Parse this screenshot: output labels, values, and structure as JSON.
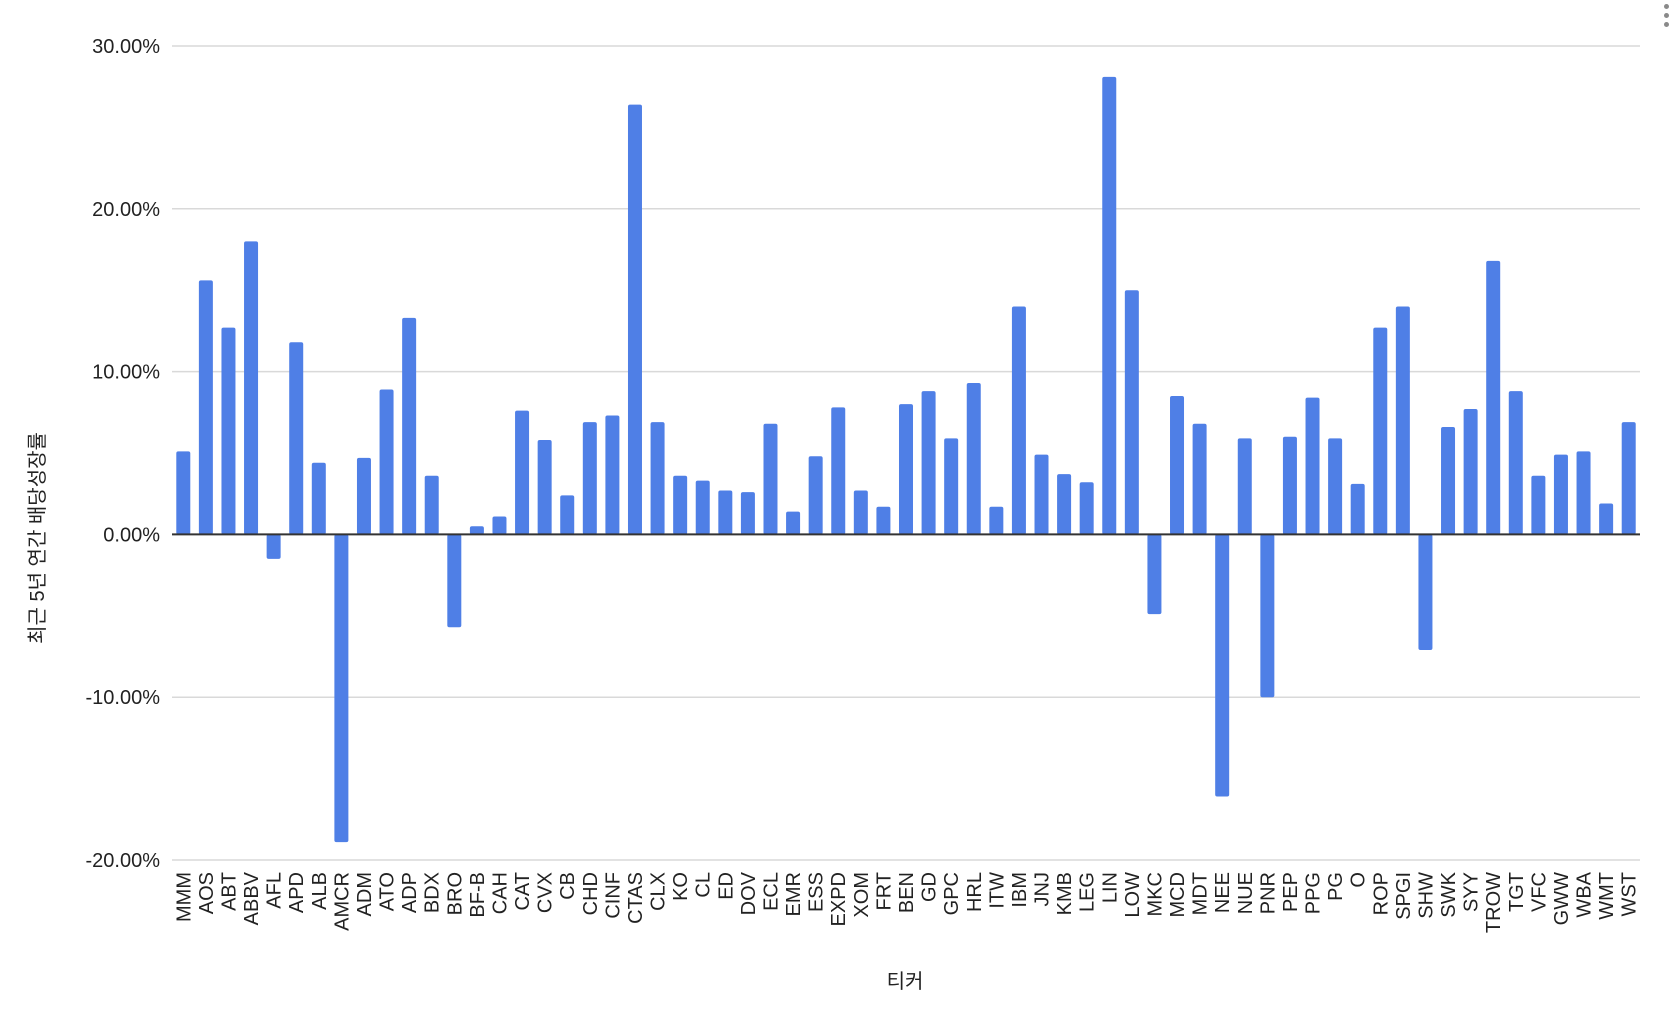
{
  "chart_data": {
    "type": "bar",
    "title": "",
    "xlabel": "티커",
    "ylabel": "최근 5년 연간 배당성장률",
    "ylim": [
      -20,
      30
    ],
    "yticks": [
      "-20.00%",
      "-10.00%",
      "0.00%",
      "10.00%",
      "20.00%",
      "30.00%"
    ],
    "ytick_values": [
      -20,
      -10,
      0,
      10,
      20,
      30
    ],
    "grid": true,
    "bar_color": "#4f7fe6",
    "categories": [
      "MMM",
      "AOS",
      "ABT",
      "ABBV",
      "AFL",
      "APD",
      "ALB",
      "AMCR",
      "ADM",
      "ATO",
      "ADP",
      "BDX",
      "BRO",
      "BF-B",
      "CAH",
      "CAT",
      "CVX",
      "CB",
      "CHD",
      "CINF",
      "CTAS",
      "CLX",
      "KO",
      "CL",
      "ED",
      "DOV",
      "ECL",
      "EMR",
      "ESS",
      "EXPD",
      "XOM",
      "FRT",
      "BEN",
      "GD",
      "GPC",
      "HRL",
      "ITW",
      "IBM",
      "JNJ",
      "KMB",
      "LEG",
      "LIN",
      "LOW",
      "MKC",
      "MCD",
      "MDT",
      "NEE",
      "NUE",
      "PNR",
      "PEP",
      "PPG",
      "PG",
      "O",
      "ROP",
      "SPGI",
      "SHW",
      "SWK",
      "SYY",
      "TROW",
      "TGT",
      "VFC",
      "GWW",
      "WBA",
      "WMT",
      "WST"
    ],
    "values": [
      5.1,
      15.6,
      12.7,
      18.0,
      -1.5,
      11.8,
      4.4,
      -18.9,
      4.7,
      8.9,
      13.3,
      3.6,
      -5.7,
      0.5,
      1.1,
      7.6,
      5.8,
      2.4,
      6.9,
      7.3,
      26.4,
      6.9,
      3.6,
      3.3,
      2.7,
      2.6,
      6.8,
      1.4,
      4.8,
      7.8,
      2.7,
      1.7,
      8.0,
      8.8,
      5.9,
      9.3,
      1.7,
      14.0,
      4.9,
      3.7,
      3.2,
      28.1,
      15.0,
      -4.9,
      8.5,
      6.8,
      -16.1,
      5.9,
      -10.0,
      6.0,
      8.4,
      5.9,
      3.1,
      12.7,
      14.0,
      -7.1,
      6.6,
      7.7,
      16.8,
      8.8,
      3.6,
      4.9,
      5.1,
      1.9,
      6.9
    ]
  }
}
